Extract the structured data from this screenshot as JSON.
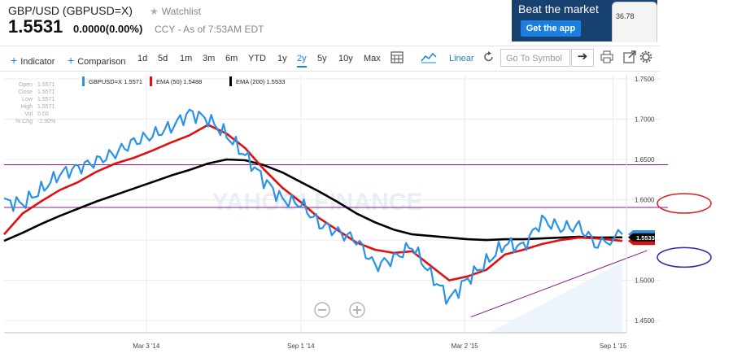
{
  "header": {
    "title": "GBP/USD (GBPUSD=X)",
    "watchlist_label": "Watchlist",
    "price": "1.5531",
    "change": "0.0000(0.00%)",
    "meta": "CCY - As of 7:53AM EDT"
  },
  "banner": {
    "headline": "Beat the market",
    "button": "Get the app",
    "phone_value": "36.78"
  },
  "toolbar": {
    "indicator": "Indicator",
    "comparison": "Comparison",
    "ranges": [
      "1d",
      "5d",
      "1m",
      "3m",
      "6m",
      "YTD",
      "1y",
      "2y",
      "5y",
      "10y",
      "Max"
    ],
    "selected_range": "2y",
    "scale": "Linear",
    "symbol_placeholder": "Go To Symbol"
  },
  "colors": {
    "price_line": "#2a93e8",
    "ema50": "#e01010",
    "ema200": "#000000",
    "accent": "#1b7fe0",
    "trend_lines": "#8b1a8b",
    "annotation_red": "#d62020",
    "annotation_blue": "#2a2aa8"
  },
  "chart_data": {
    "type": "line",
    "x_tick_labels": [
      "Mar 3 '14",
      "Sep 1 '14",
      "Mar 2 '15",
      "Sep 1 '15"
    ],
    "y_tick_labels": [
      "1.7500",
      "1.7000",
      "1.6500",
      "1.6000",
      "1.5500",
      "1.5000",
      "1.4500"
    ],
    "ylim": [
      1.435,
      1.755
    ],
    "watermark": "YAHOO! FINANCE",
    "info_panel": [
      {
        "label": "Open",
        "value": "1.5571"
      },
      {
        "label": "Close",
        "value": "1.5571"
      },
      {
        "label": "Low",
        "value": "1.5571"
      },
      {
        "label": "High",
        "value": "1.5571"
      },
      {
        "label": "Vol",
        "value": "0.00"
      },
      {
        "label": "% Chg",
        "value": "-2.90%"
      }
    ],
    "legend": [
      {
        "name": "GBPUSD=X",
        "value": "1.5571",
        "color": "#2a93e8"
      },
      {
        "name": "EMA (50)",
        "value": "1.5488",
        "color": "#e01010"
      },
      {
        "name": "EMA (200)",
        "value": "1.5533",
        "color": "#000000"
      }
    ],
    "last_price_label": "1.5533",
    "x": [
      0,
      0.03,
      0.06,
      0.09,
      0.12,
      0.15,
      0.18,
      0.21,
      0.24,
      0.27,
      0.3,
      0.33,
      0.36,
      0.39,
      0.42,
      0.45,
      0.48,
      0.51,
      0.54,
      0.57,
      0.6,
      0.63,
      0.66,
      0.69,
      0.72,
      0.75,
      0.78,
      0.81,
      0.84,
      0.87,
      0.9,
      0.93,
      0.96,
      1.0
    ],
    "series": [
      {
        "name": "GBPUSD=X",
        "values": [
          1.598,
          1.595,
          1.612,
          1.632,
          1.64,
          1.648,
          1.658,
          1.672,
          1.68,
          1.69,
          1.708,
          1.7,
          1.68,
          1.655,
          1.625,
          1.6,
          1.595,
          1.57,
          1.56,
          1.55,
          1.518,
          1.527,
          1.543,
          1.507,
          1.476,
          1.502,
          1.522,
          1.545,
          1.542,
          1.575,
          1.565,
          1.567,
          1.543,
          1.557
        ]
      },
      {
        "name": "EMA (50)",
        "values": [
          1.557,
          1.583,
          1.598,
          1.612,
          1.622,
          1.635,
          1.645,
          1.652,
          1.661,
          1.671,
          1.68,
          1.693,
          1.682,
          1.664,
          1.638,
          1.615,
          1.597,
          1.577,
          1.562,
          1.547,
          1.538,
          1.534,
          1.536,
          1.518,
          1.5,
          1.505,
          1.513,
          1.532,
          1.538,
          1.545,
          1.55,
          1.553,
          1.552,
          1.549
        ]
      },
      {
        "name": "EMA (200)",
        "values": [
          1.549,
          1.559,
          1.57,
          1.58,
          1.589,
          1.598,
          1.606,
          1.614,
          1.622,
          1.63,
          1.637,
          1.645,
          1.65,
          1.649,
          1.643,
          1.634,
          1.622,
          1.61,
          1.597,
          1.583,
          1.572,
          1.563,
          1.557,
          1.555,
          1.553,
          1.551,
          1.55,
          1.551,
          1.551,
          1.552,
          1.553,
          1.554,
          1.553,
          1.5533
        ]
      }
    ],
    "annotations": {
      "horizontal_lines": [
        1.6435,
        1.5905
      ],
      "trend_line": {
        "from": [
          0.755,
          1.4545
        ],
        "to": [
          1.04,
          1.537
        ]
      },
      "ellipses": [
        {
          "color": "red",
          "center": [
            1.1,
            1.5955
          ]
        },
        {
          "color": "blue",
          "center": [
            1.1,
            1.5285
          ]
        }
      ]
    }
  }
}
